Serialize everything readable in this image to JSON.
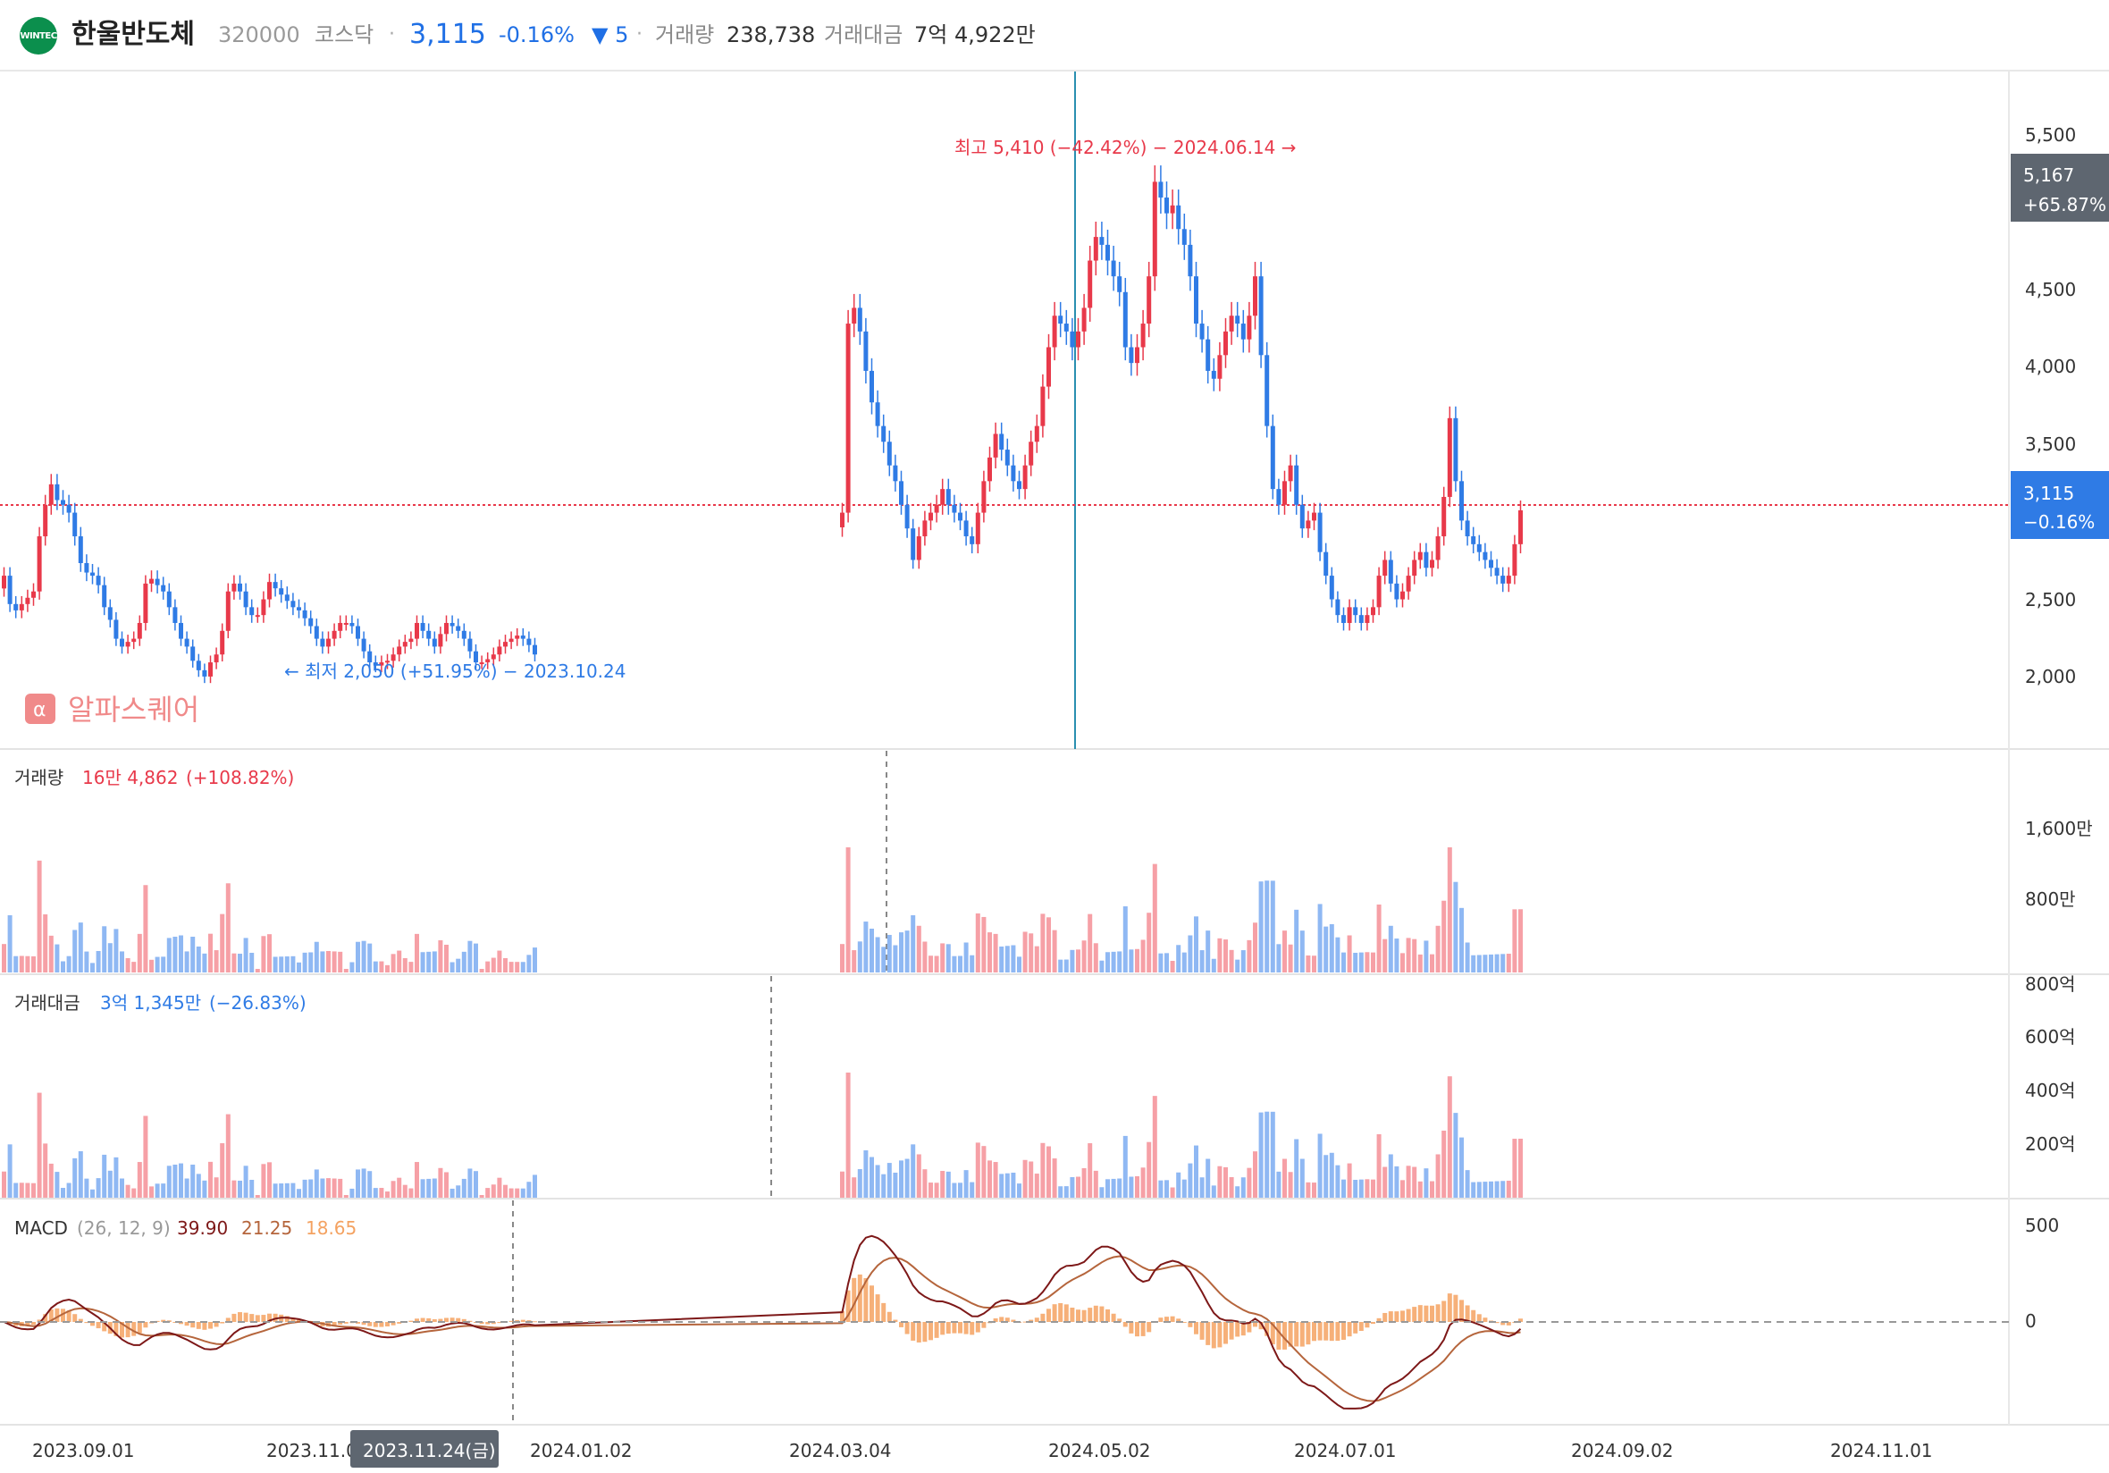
{
  "header": {
    "logo_text": "WINTEC",
    "name": "한울반도체",
    "code": "320000",
    "market": "코스닥",
    "separator": "·",
    "price": "3,115",
    "change_pct": "-0.16%",
    "change_diff": "▼ 5",
    "volume_label": "거래량",
    "volume_value": "238,738",
    "amount_label": "거래대금",
    "amount_value": "7억 4,922만"
  },
  "colors": {
    "up": "#e8394a",
    "down": "#2f7be5",
    "up_light": "#f6a0a6",
    "down_light": "#8fb8f3",
    "gray_bar": "#a6a6a6",
    "macd": "#7d1818",
    "signal": "#b5653c",
    "osc": "#f4a261"
  },
  "watermark": "알파스퀘어",
  "price_annotations": {
    "high": "최고 5,410 (−42.42%) − 2024.06.14 →",
    "low": "← 최저 2,050 (+51.95%) − 2023.10.24"
  },
  "right_badges": {
    "hover_price": "5,167",
    "hover_pct": "+65.87%",
    "current_price": "3,115",
    "current_pct": "−0.16%"
  },
  "price_axis_ticks": [
    "5,500",
    "4,500",
    "4,000",
    "3,500",
    "2,500",
    "2,000"
  ],
  "volume_panel": {
    "label": "거래량",
    "value": "16만 4,862",
    "pct": "(+108.82%)",
    "ticks": [
      "1,600만",
      "800만"
    ]
  },
  "amount_panel": {
    "label": "거래대금",
    "value": "3억 1,345만",
    "pct": "(−26.83%)",
    "ticks": [
      "800억",
      "600억",
      "400억",
      "200억"
    ]
  },
  "macd_panel": {
    "label": "MACD",
    "params": "(26, 12, 9)",
    "v1": "39.90",
    "v2": "21.25",
    "v3": "18.65",
    "ticks": [
      "500",
      "0"
    ]
  },
  "x_axis": {
    "ticks": [
      "2023.09.01",
      "2023.11.0",
      "2024.01.02",
      "2024.03.04",
      "2024.05.02",
      "2024.07.01",
      "2024.09.02",
      "2024.11.01"
    ],
    "hover_date": "2023.11.24(금)"
  },
  "chart_data": {
    "type": "candlestick",
    "title": "한울반도체",
    "ylim": [
      1600,
      5900
    ],
    "x_start": "2023.08.01",
    "x_end": "2024.11.15",
    "gap_note": "trading halt gap between 2024.01 and 2024.03",
    "price_series": {
      "name": "close",
      "segment1": [
        2700,
        2520,
        2480,
        2520,
        2560,
        2600,
        2950,
        3150,
        3280,
        3180,
        3150,
        3100,
        2950,
        2780,
        2720,
        2700,
        2640,
        2500,
        2420,
        2300,
        2250,
        2280,
        2300,
        2400,
        2650,
        2680,
        2640,
        2600,
        2500,
        2400,
        2300,
        2250,
        2160,
        2100,
        2060,
        2150,
        2200,
        2350,
        2600,
        2650,
        2600,
        2500,
        2450,
        2450,
        2550,
        2660,
        2620,
        2580,
        2540,
        2500,
        2480,
        2430,
        2380,
        2300,
        2250,
        2300,
        2350,
        2400,
        2400,
        2380,
        2300,
        2220,
        2150,
        2130,
        2150,
        2160,
        2200,
        2250,
        2280,
        2300,
        2400,
        2350,
        2300,
        2250,
        2330,
        2400,
        2380,
        2350,
        2300,
        2220,
        2150,
        2150,
        2170,
        2200,
        2250,
        2280,
        2300,
        2320,
        2300,
        2260,
        2200
      ],
      "segment2": [
        3100,
        4300,
        4400,
        4250,
        4000,
        3800,
        3650,
        3550,
        3400,
        3300,
        3150,
        3000,
        2800,
        2950,
        3050,
        3100,
        3150,
        3250,
        3150,
        3100,
        3050,
        2950,
        2900,
        3100,
        3300,
        3450,
        3600,
        3500,
        3400,
        3300,
        3250,
        3400,
        3550,
        3650,
        3900,
        4150,
        4350,
        4300,
        4250,
        4150,
        4250,
        4400,
        4700,
        4850,
        4800,
        4700,
        4600,
        4500,
        4150,
        4050,
        4150,
        4300,
        4600,
        5200,
        5100,
        5000,
        5050,
        4900,
        4800,
        4600,
        4300,
        4200,
        4000,
        3950,
        4100,
        4250,
        4350,
        4300,
        4200,
        4350,
        4600,
        4100,
        3650,
        3250,
        3150,
        3300,
        3400,
        3150,
        3000,
        3050,
        3100,
        2850,
        2700,
        2550,
        2450,
        2400,
        2500,
        2450,
        2400,
        2450,
        2500,
        2700,
        2800,
        2650,
        2550,
        2600,
        2700,
        2800,
        2850,
        2750,
        2800,
        2950,
        3200,
        3700,
        3300,
        3050,
        2950,
        2900,
        2850,
        2800,
        2750,
        2700,
        2650,
        2700,
        2900,
        3115
      ]
    },
    "volume_ticks_unit": "만",
    "macd": {
      "params": [
        26,
        12,
        9
      ],
      "macd": 39.9,
      "signal": 21.25,
      "oscillator": 18.65,
      "ylim": [
        -450,
        600
      ]
    }
  }
}
